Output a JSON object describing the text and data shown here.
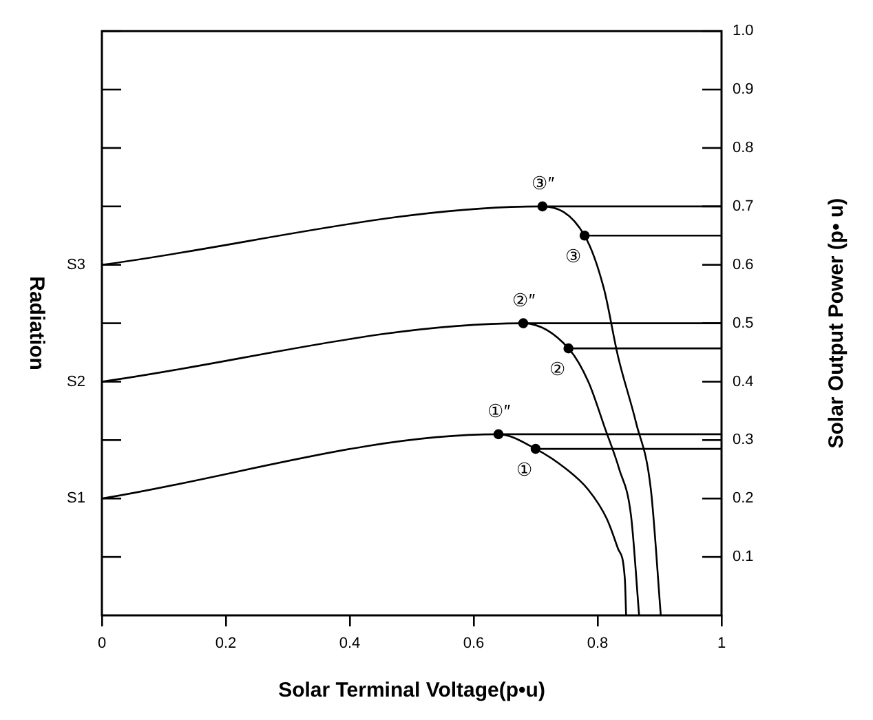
{
  "chart_data": {
    "type": "line",
    "xlabel": "Solar Terminal Voltage(p•u)",
    "ylabel": "Solar Output Power (p• u)",
    "xlim": [
      0,
      1
    ],
    "xticks": [
      0,
      0.2,
      0.4,
      0.6,
      0.8,
      1
    ],
    "ylim": [
      0,
      1
    ],
    "yticks": [
      0.1,
      0.2,
      0.3,
      0.4,
      0.5,
      0.6,
      0.7,
      0.8,
      0.9,
      {
        "value": 1,
        "label": "1.0"
      }
    ],
    "series": [
      {
        "color": "#000000",
        "marker": "none",
        "x": [
          0,
          0.64,
          0.7,
          0.75,
          0.785,
          0.815,
          0.833,
          0.844,
          0.846
        ],
        "values": [
          0.2,
          0.31,
          0.285,
          0.25,
          0.215,
          0.165,
          0.114,
          0.062,
          0
        ]
      },
      {
        "color": "#000000",
        "marker": "none",
        "x": [
          0,
          0.68,
          0.753,
          0.785,
          0.812,
          0.835,
          0.854,
          0.867
        ],
        "values": [
          0.4,
          0.5,
          0.457,
          0.4,
          0.32,
          0.25,
          0.17,
          0
        ]
      },
      {
        "color": "#000000",
        "marker": "none",
        "x": [
          0,
          0.711,
          0.779,
          0.81,
          0.833,
          0.862,
          0.886,
          0.902
        ],
        "values": [
          0.6,
          0.7,
          0.65,
          0.56,
          0.443,
          0.33,
          0.215,
          0
        ]
      },
      {
        "color": "#000000",
        "marker": "none",
        "x": [
          0.64,
          1
        ],
        "values": [
          0.31,
          0.31
        ]
      },
      {
        "color": "#000000",
        "marker": "none",
        "x": [
          0.7,
          1
        ],
        "values": [
          0.285,
          0.285
        ]
      },
      {
        "color": "#000000",
        "marker": "none",
        "x": [
          0.68,
          1
        ],
        "values": [
          0.5,
          0.5
        ]
      },
      {
        "color": "#000000",
        "marker": "none",
        "x": [
          0.753,
          1
        ],
        "values": [
          0.457,
          0.457
        ]
      },
      {
        "color": "#000000",
        "marker": "none",
        "x": [
          0.711,
          1
        ],
        "values": [
          0.7,
          0.7
        ]
      },
      {
        "color": "#000000",
        "marker": "none",
        "x": [
          0.779,
          1
        ],
        "values": [
          0.65,
          0.65
        ]
      },
      {
        "type": "scatter",
        "color": "#000000",
        "marker": "circle",
        "x": [
          0.64,
          0.7,
          0.68,
          0.753,
          0.711,
          0.779
        ],
        "values": [
          0.31,
          0.285,
          0.5,
          0.457,
          0.7,
          0.65
        ]
      }
    ],
    "annotations": [
      "Radiation",
      {
        "text": "S1",
        "x": 0,
        "y": 0.2
      },
      {
        "text": "S2",
        "x": 0,
        "y": 0.4
      },
      {
        "text": "S3",
        "x": 0,
        "y": 0.6
      },
      {
        "text": "③″",
        "x": 0.711,
        "y": 0.7
      },
      {
        "text": "③",
        "x": 0.779,
        "y": 0.65
      },
      {
        "text": "②″",
        "x": 0.68,
        "y": 0.5
      },
      {
        "text": "②",
        "x": 0.753,
        "y": 0.457
      },
      {
        "text": "①″",
        "x": 0.64,
        "y": 0.31
      },
      {
        "text": "①",
        "x": 0.7,
        "y": 0.285
      }
    ]
  }
}
